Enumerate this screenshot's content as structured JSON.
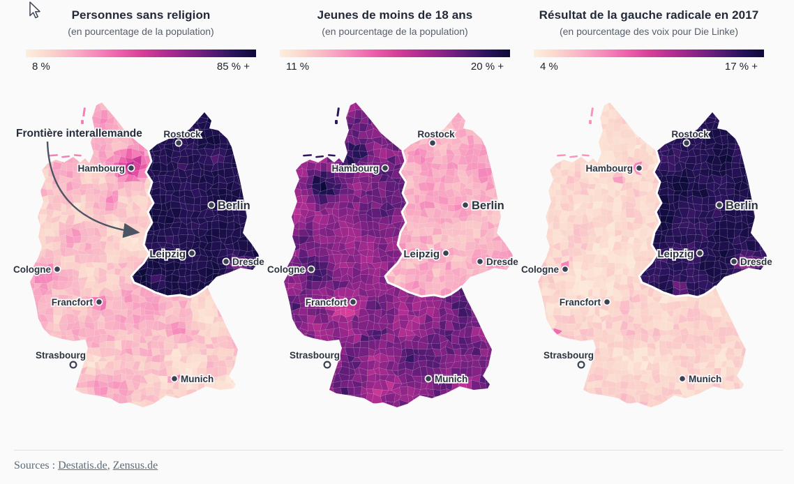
{
  "chart_data": {
    "type": "choropleth",
    "geography": "Allemagne (districts), frontière interallemande mise en évidence",
    "maps": [
      {
        "title": "Personnes sans religion",
        "subtitle": "(en pourcentage de la population)",
        "scale_min": "8 %",
        "scale_max": "85 % +",
        "scale_min_value": 8,
        "scale_max_value": 85,
        "pattern": "est (ex-RDA) très sombre = valeurs élevées ; ouest clair avec poche sombre autour de Hambourg"
      },
      {
        "title": "Jeunes de moins de 18 ans",
        "subtitle": "(en pourcentage de la population)",
        "scale_min": "11 %",
        "scale_max": "20 % +",
        "scale_min_value": 11,
        "scale_max_value": 20,
        "pattern": "ouest sombre = valeurs élevées (nord-ouest très sombre) ; est clair"
      },
      {
        "title": "Résultat de la gauche radicale en 2017",
        "subtitle": "(en pourcentage des voix pour Die Linke)",
        "scale_min": "4 %",
        "scale_max": "17 % +",
        "scale_min_value": 4,
        "scale_max_value": 17,
        "pattern": "est très sombre = scores élevés ; ouest très clair avec quelques poches"
      }
    ],
    "colormap": [
      "#fdeedd",
      "#fbd6cc",
      "#f9b4c6",
      "#f68cbc",
      "#ee62ac",
      "#d94099",
      "#b52e92",
      "#8c2488",
      "#5d1c78",
      "#2a145c",
      "#0c0a38"
    ],
    "annotation": {
      "label": "Frontière interallemande"
    },
    "cities": [
      {
        "name": "Rostock",
        "dot": [
          246,
          66
        ],
        "label": [
          251,
          58
        ],
        "anchor": "middle",
        "marker": "filled",
        "emphasis": "none"
      },
      {
        "name": "Hambourg",
        "dot": [
          178,
          102
        ],
        "label": [
          169,
          107
        ],
        "anchor": "end",
        "marker": "filled",
        "emphasis": "none"
      },
      {
        "name": "Berlin",
        "dot": [
          293,
          155
        ],
        "label": [
          302,
          161
        ],
        "anchor": "start",
        "marker": "filled",
        "emphasis": "high"
      },
      {
        "name": "Leipzig",
        "dot": [
          265,
          224
        ],
        "label": [
          256,
          230
        ],
        "anchor": "end",
        "marker": "filled",
        "emphasis": "medium"
      },
      {
        "name": "Dresde",
        "dot": [
          314,
          236
        ],
        "label": [
          323,
          241
        ],
        "anchor": "start",
        "marker": "filled",
        "emphasis": "none"
      },
      {
        "name": "Cologne",
        "dot": [
          72,
          247
        ],
        "label": [
          63,
          252
        ],
        "anchor": "end",
        "marker": "filled",
        "emphasis": "none"
      },
      {
        "name": "Francfort",
        "dot": [
          132,
          294
        ],
        "label": [
          123,
          299
        ],
        "anchor": "end",
        "marker": "filled",
        "emphasis": "none"
      },
      {
        "name": "Strasbourg",
        "dot": [
          95,
          384
        ],
        "label": [
          77,
          375
        ],
        "anchor": "middle",
        "marker": "open",
        "emphasis": "none"
      },
      {
        "name": "Munich",
        "dot": [
          240,
          404
        ],
        "label": [
          249,
          409
        ],
        "anchor": "start",
        "marker": "filled",
        "emphasis": "none"
      }
    ],
    "sources": [
      "Destatis.de",
      "Zensus.de"
    ]
  },
  "footer": {
    "prefix": "Sources :",
    "link1": "Destatis.de",
    "separator": ", ",
    "link2": "Zensus.de"
  }
}
